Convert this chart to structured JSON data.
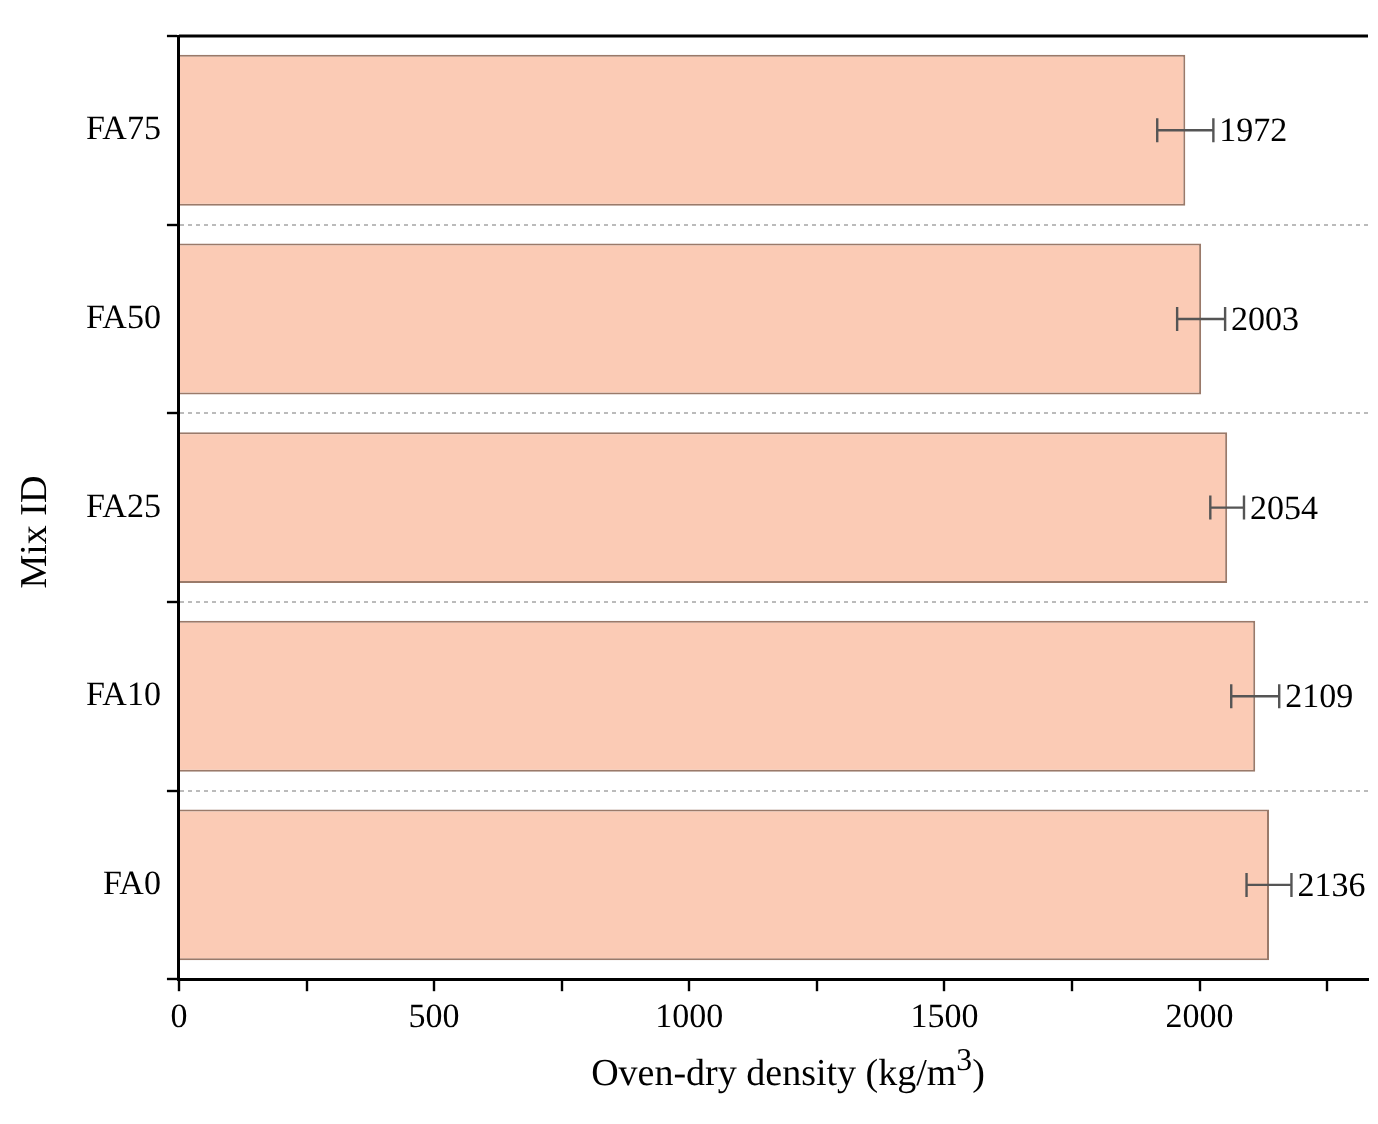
{
  "chart_data": {
    "type": "bar",
    "orientation": "horizontal",
    "xlabel": "Oven-dry density (kg/m$^{3}$)",
    "ylabel": "Mix ID",
    "categories": [
      "FA75",
      "FA50",
      "FA25",
      "FA10",
      "FA0"
    ],
    "values": [
      1972,
      2003,
      2054,
      2109,
      2136
    ],
    "errors": [
      55,
      47,
      33,
      47,
      44
    ],
    "color": "#fbcbb5",
    "xlim": [
      0,
      2330
    ],
    "xticks": [
      0,
      500,
      1000,
      1500,
      2000
    ],
    "grid": "y",
    "data_labels": true,
    "legend": false
  }
}
